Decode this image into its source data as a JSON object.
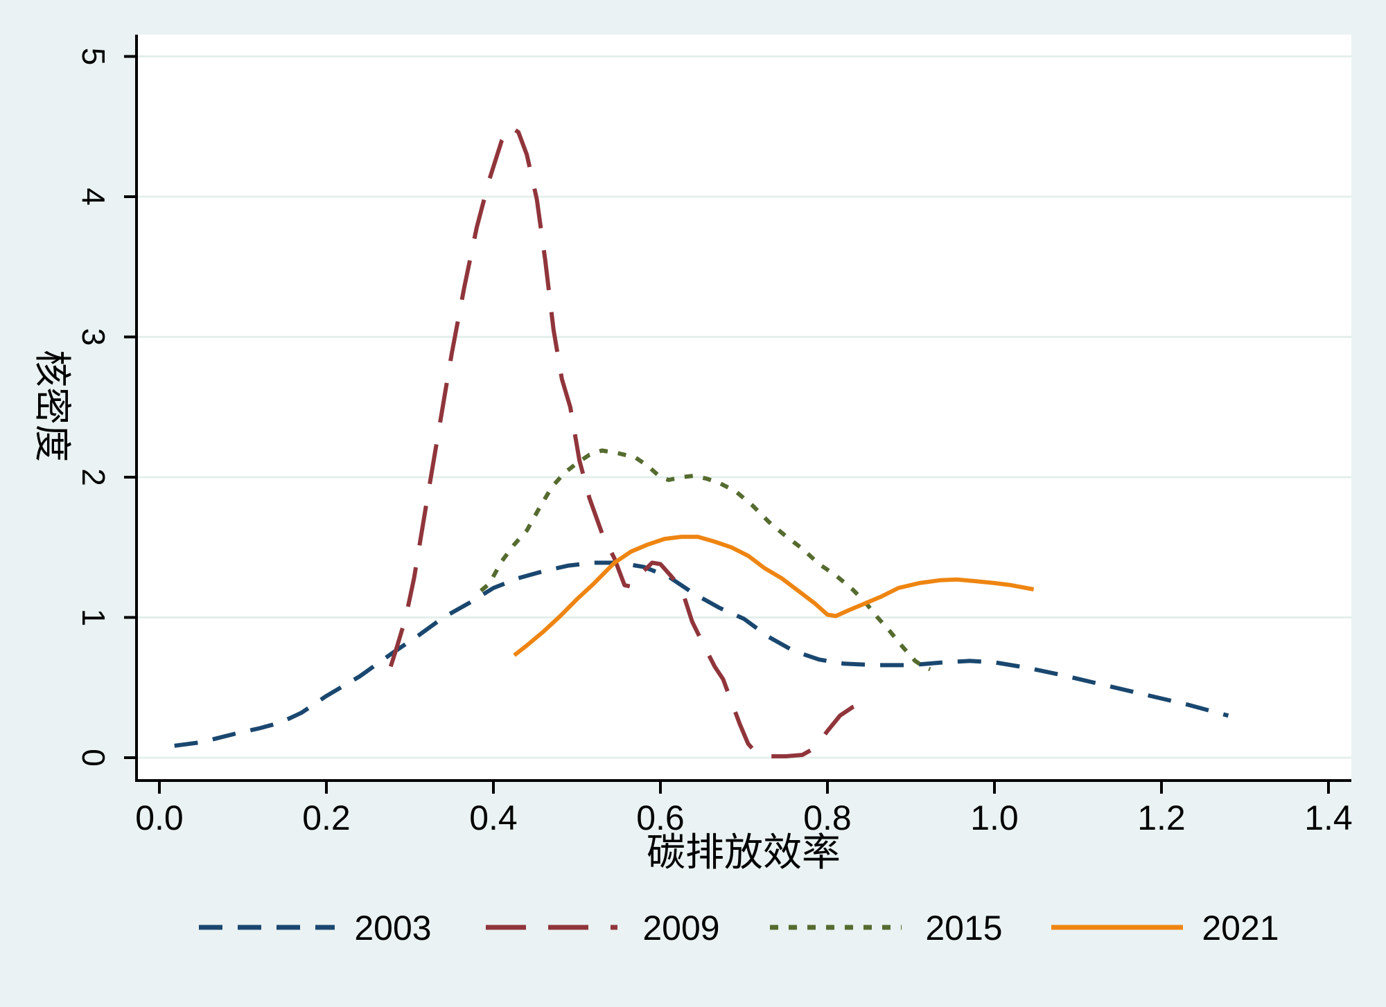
{
  "figure": {
    "background": "#eaf2f3",
    "plot_background": "#ffffff",
    "grid_color": "#e4efeb",
    "axis_color": "#000000",
    "text_color": "#000000"
  },
  "chart_data": {
    "type": "line",
    "title": "",
    "xlabel": "碳排放效率",
    "ylabel": "核密度",
    "xlim": [
      0.0,
      1.4
    ],
    "ylim": [
      0,
      5
    ],
    "grid": "horizontal",
    "legend_position": "bottom",
    "x_ticks": [
      "0.0",
      "0.2",
      "0.4",
      "0.6",
      "0.8",
      "1.0",
      "1.2",
      "1.4"
    ],
    "x_tick_values": [
      0.0,
      0.2,
      0.4,
      0.6,
      0.8,
      1.0,
      1.2,
      1.4
    ],
    "y_ticks": [
      "0",
      "1",
      "2",
      "3",
      "4",
      "5"
    ],
    "y_tick_values": [
      0,
      1,
      2,
      3,
      4,
      5
    ],
    "series": [
      {
        "name": "2003",
        "color": "#1a476f",
        "dash": "34 22",
        "points": [
          [
            0.018,
            0.085
          ],
          [
            0.05,
            0.11
          ],
          [
            0.09,
            0.17
          ],
          [
            0.12,
            0.21
          ],
          [
            0.145,
            0.25
          ],
          [
            0.17,
            0.32
          ],
          [
            0.2,
            0.44
          ],
          [
            0.24,
            0.58
          ],
          [
            0.28,
            0.75
          ],
          [
            0.31,
            0.87
          ],
          [
            0.34,
            1.0
          ],
          [
            0.37,
            1.1
          ],
          [
            0.4,
            1.21
          ],
          [
            0.43,
            1.28
          ],
          [
            0.46,
            1.33
          ],
          [
            0.49,
            1.37
          ],
          [
            0.52,
            1.39
          ],
          [
            0.55,
            1.39
          ],
          [
            0.58,
            1.36
          ],
          [
            0.61,
            1.29
          ],
          [
            0.64,
            1.17
          ],
          [
            0.67,
            1.07
          ],
          [
            0.7,
            0.99
          ],
          [
            0.73,
            0.86
          ],
          [
            0.76,
            0.76
          ],
          [
            0.79,
            0.7
          ],
          [
            0.82,
            0.67
          ],
          [
            0.86,
            0.66
          ],
          [
            0.9,
            0.66
          ],
          [
            0.94,
            0.68
          ],
          [
            0.97,
            0.69
          ],
          [
            1.0,
            0.68
          ],
          [
            1.04,
            0.64
          ],
          [
            1.08,
            0.59
          ],
          [
            1.13,
            0.52
          ],
          [
            1.18,
            0.45
          ],
          [
            1.23,
            0.38
          ],
          [
            1.28,
            0.3
          ]
        ]
      },
      {
        "name": "2009",
        "color": "#90353b",
        "dash": "58 32",
        "points": [
          [
            0.277,
            0.65
          ],
          [
            0.285,
            0.8
          ],
          [
            0.295,
            1.0
          ],
          [
            0.305,
            1.28
          ],
          [
            0.32,
            1.82
          ],
          [
            0.335,
            2.35
          ],
          [
            0.35,
            2.88
          ],
          [
            0.365,
            3.35
          ],
          [
            0.38,
            3.78
          ],
          [
            0.395,
            4.12
          ],
          [
            0.41,
            4.4
          ],
          [
            0.42,
            4.5
          ],
          [
            0.43,
            4.46
          ],
          [
            0.44,
            4.3
          ],
          [
            0.452,
            3.98
          ],
          [
            0.462,
            3.55
          ],
          [
            0.472,
            3.05
          ],
          [
            0.482,
            2.7
          ],
          [
            0.492,
            2.5
          ],
          [
            0.503,
            2.12
          ],
          [
            0.515,
            1.85
          ],
          [
            0.53,
            1.6
          ],
          [
            0.545,
            1.42
          ],
          [
            0.557,
            1.23
          ],
          [
            0.565,
            1.22
          ],
          [
            0.578,
            1.32
          ],
          [
            0.59,
            1.39
          ],
          [
            0.6,
            1.38
          ],
          [
            0.612,
            1.3
          ],
          [
            0.625,
            1.21
          ],
          [
            0.638,
            0.97
          ],
          [
            0.652,
            0.8
          ],
          [
            0.665,
            0.65
          ],
          [
            0.675,
            0.56
          ],
          [
            0.685,
            0.4
          ],
          [
            0.695,
            0.24
          ],
          [
            0.705,
            0.1
          ],
          [
            0.715,
            0.03
          ],
          [
            0.73,
            0.01
          ],
          [
            0.75,
            0.01
          ],
          [
            0.77,
            0.02
          ],
          [
            0.785,
            0.07
          ],
          [
            0.8,
            0.19
          ],
          [
            0.815,
            0.3
          ],
          [
            0.83,
            0.36
          ],
          [
            0.845,
            0.395
          ],
          [
            0.853,
            0.4
          ]
        ]
      },
      {
        "name": "2015",
        "color": "#556b2f",
        "dash": "12 15",
        "points": [
          [
            0.385,
            1.19
          ],
          [
            0.395,
            1.24
          ],
          [
            0.41,
            1.4
          ],
          [
            0.425,
            1.52
          ],
          [
            0.44,
            1.62
          ],
          [
            0.455,
            1.78
          ],
          [
            0.47,
            1.93
          ],
          [
            0.485,
            2.03
          ],
          [
            0.5,
            2.1
          ],
          [
            0.515,
            2.16
          ],
          [
            0.53,
            2.19
          ],
          [
            0.55,
            2.17
          ],
          [
            0.57,
            2.14
          ],
          [
            0.585,
            2.08
          ],
          [
            0.6,
            2.0
          ],
          [
            0.61,
            1.98
          ],
          [
            0.625,
            2.0
          ],
          [
            0.64,
            2.01
          ],
          [
            0.655,
            1.99
          ],
          [
            0.67,
            1.96
          ],
          [
            0.69,
            1.9
          ],
          [
            0.71,
            1.8
          ],
          [
            0.73,
            1.68
          ],
          [
            0.75,
            1.58
          ],
          [
            0.77,
            1.49
          ],
          [
            0.79,
            1.38
          ],
          [
            0.81,
            1.3
          ],
          [
            0.83,
            1.2
          ],
          [
            0.845,
            1.11
          ],
          [
            0.86,
            1.0
          ],
          [
            0.875,
            0.9
          ],
          [
            0.89,
            0.79
          ],
          [
            0.905,
            0.69
          ],
          [
            0.915,
            0.65
          ],
          [
            0.923,
            0.63
          ]
        ]
      },
      {
        "name": "2021",
        "color": "#ee8512",
        "dash": "",
        "points": [
          [
            0.425,
            0.73
          ],
          [
            0.44,
            0.8
          ],
          [
            0.46,
            0.9
          ],
          [
            0.48,
            1.01
          ],
          [
            0.5,
            1.13
          ],
          [
            0.52,
            1.24
          ],
          [
            0.545,
            1.39
          ],
          [
            0.565,
            1.47
          ],
          [
            0.585,
            1.52
          ],
          [
            0.605,
            1.56
          ],
          [
            0.625,
            1.575
          ],
          [
            0.645,
            1.575
          ],
          [
            0.665,
            1.54
          ],
          [
            0.685,
            1.5
          ],
          [
            0.705,
            1.44
          ],
          [
            0.725,
            1.35
          ],
          [
            0.745,
            1.28
          ],
          [
            0.765,
            1.19
          ],
          [
            0.785,
            1.1
          ],
          [
            0.8,
            1.02
          ],
          [
            0.81,
            1.01
          ],
          [
            0.825,
            1.05
          ],
          [
            0.845,
            1.1
          ],
          [
            0.865,
            1.15
          ],
          [
            0.885,
            1.21
          ],
          [
            0.91,
            1.245
          ],
          [
            0.935,
            1.265
          ],
          [
            0.955,
            1.27
          ],
          [
            0.975,
            1.26
          ],
          [
            1.0,
            1.245
          ],
          [
            1.02,
            1.23
          ],
          [
            1.047,
            1.2
          ]
        ]
      }
    ]
  }
}
